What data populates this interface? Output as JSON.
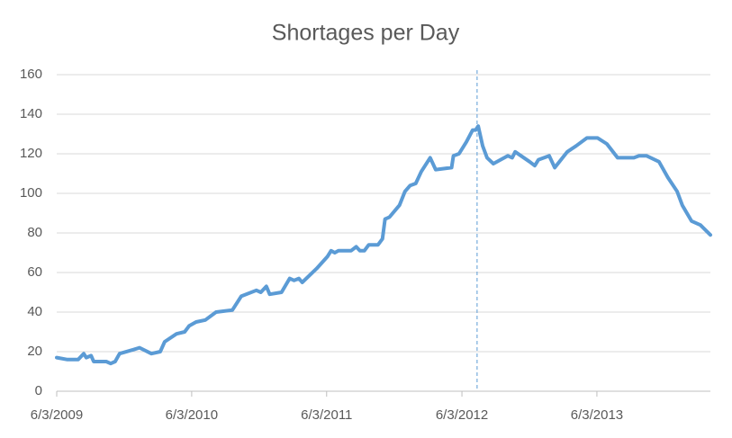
{
  "chart_data": {
    "type": "line",
    "title": "Shortages per Day",
    "x": [
      "2009-06-03",
      "2009-07-02",
      "2009-07-31",
      "2009-08-15",
      "2009-08-22",
      "2009-09-04",
      "2009-09-11",
      "2009-10-15",
      "2009-10-27",
      "2009-11-08",
      "2009-11-20",
      "2009-12-27",
      "2010-01-13",
      "2010-02-14",
      "2010-03-10",
      "2010-03-22",
      "2010-04-23",
      "2010-05-15",
      "2010-05-27",
      "2010-06-15",
      "2010-07-10",
      "2010-08-08",
      "2010-09-21",
      "2010-10-15",
      "2010-11-25",
      "2010-12-07",
      "2010-12-22",
      "2010-12-31",
      "2011-02-01",
      "2011-02-23",
      "2011-03-07",
      "2011-03-20",
      "2011-03-29",
      "2011-05-07",
      "2011-06-05",
      "2011-06-15",
      "2011-06-25",
      "2011-07-05",
      "2011-08-08",
      "2011-08-22",
      "2011-09-01",
      "2011-09-13",
      "2011-09-25",
      "2011-10-20",
      "2011-11-01",
      "2011-11-08",
      "2011-11-20",
      "2011-12-17",
      "2012-01-01",
      "2012-01-15",
      "2012-01-30",
      "2012-02-14",
      "2012-03-09",
      "2012-03-24",
      "2012-05-06",
      "2012-05-11",
      "2012-05-26",
      "2012-06-15",
      "2012-07-02",
      "2012-07-10",
      "2012-07-17",
      "2012-07-29",
      "2012-08-10",
      "2012-08-27",
      "2012-10-05",
      "2012-10-17",
      "2012-10-25",
      "2012-12-03",
      "2012-12-17",
      "2012-12-27",
      "2013-01-25",
      "2013-02-09",
      "2013-03-15",
      "2013-04-08",
      "2013-05-07",
      "2013-06-05",
      "2013-06-30",
      "2013-07-29",
      "2013-09-11",
      "2013-09-25",
      "2013-10-15",
      "2013-11-18",
      "2013-12-12",
      "2014-01-06",
      "2014-01-20",
      "2014-02-14",
      "2014-03-10",
      "2014-04-06"
    ],
    "series": [
      {
        "name": "Shortages per Day",
        "color": "#5b9bd5",
        "values": [
          17,
          16,
          16,
          19,
          17,
          18,
          15,
          15,
          14,
          15,
          19,
          21,
          22,
          19,
          20,
          25,
          29,
          30,
          33,
          35,
          36,
          40,
          41,
          48,
          51,
          50,
          53,
          49,
          50,
          57,
          56,
          57,
          55,
          62,
          68,
          71,
          70,
          71,
          71,
          73,
          71,
          71,
          74,
          74,
          77,
          87,
          88,
          94,
          101,
          104,
          105,
          111,
          118,
          112,
          113,
          119,
          120,
          126,
          132,
          132,
          134,
          124,
          118,
          115,
          119,
          118,
          121,
          116,
          114,
          117,
          119,
          113,
          121,
          124,
          128,
          128,
          125,
          118,
          118,
          119,
          119,
          116,
          108,
          101,
          94,
          86,
          84,
          79
        ]
      }
    ],
    "xlim": [
      "2009-06-03",
      "2014-04-06"
    ],
    "xticks": [
      {
        "value": "2009-06-03",
        "label": "6/3/2009"
      },
      {
        "value": "2010-06-03",
        "label": "6/3/2010"
      },
      {
        "value": "2011-06-03",
        "label": "6/3/2011"
      },
      {
        "value": "2012-06-03",
        "label": "6/3/2012"
      },
      {
        "value": "2013-06-03",
        "label": "6/3/2013"
      }
    ],
    "ylim": [
      0,
      160
    ],
    "yticks": [
      0,
      20,
      40,
      60,
      80,
      100,
      120,
      140,
      160
    ],
    "grid": true,
    "vline": "2012-07-14"
  }
}
